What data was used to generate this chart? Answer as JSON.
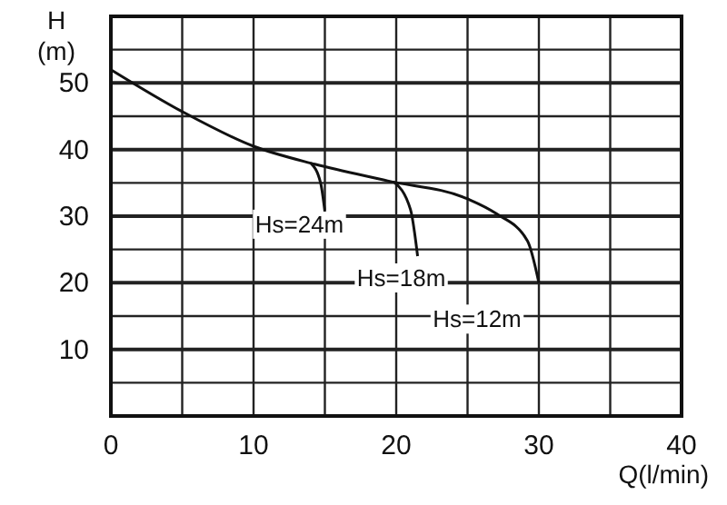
{
  "chart_data": {
    "type": "line",
    "xlabel": "Q(l/min)",
    "ylabel": "H (m)",
    "xlim": [
      0,
      40
    ],
    "ylim": [
      0,
      60
    ],
    "xticks": [
      0,
      {
        "value": 5,
        "label": null
      },
      10,
      {
        "value": 15,
        "label": null
      },
      20,
      {
        "value": 25,
        "label": null
      },
      30,
      {
        "value": 35,
        "label": null
      },
      40
    ],
    "yticks": [
      {
        "value": 5,
        "label": null
      },
      10,
      {
        "value": 15,
        "label": null
      },
      20,
      {
        "value": 25,
        "label": null
      },
      30,
      {
        "value": 35,
        "label": null
      },
      40,
      {
        "value": 45,
        "label": null
      },
      50,
      {
        "value": 55,
        "label": null
      },
      {
        "value": 60,
        "label": null
      }
    ],
    "grid": true,
    "marker": "none",
    "line_style": "solid",
    "series": [
      {
        "name": "Hs=12m",
        "color": "#111111",
        "x": [
          0,
          5,
          10,
          14.3,
          19.4,
          25,
          27,
          29.2,
          30
        ],
        "values": [
          52,
          45.7,
          40.5,
          37.8,
          35.3,
          32.6,
          30.4,
          26.3,
          20
        ]
      },
      {
        "name": "Hs=24m",
        "color": "#111111",
        "x": [
          14,
          14.7,
          15
        ],
        "values": [
          38,
          35,
          30.7
        ]
      },
      {
        "name": "Hs=18m",
        "color": "#111111",
        "x": [
          19.8,
          21,
          21.5
        ],
        "values": [
          35.2,
          31,
          24
        ]
      }
    ]
  }
}
